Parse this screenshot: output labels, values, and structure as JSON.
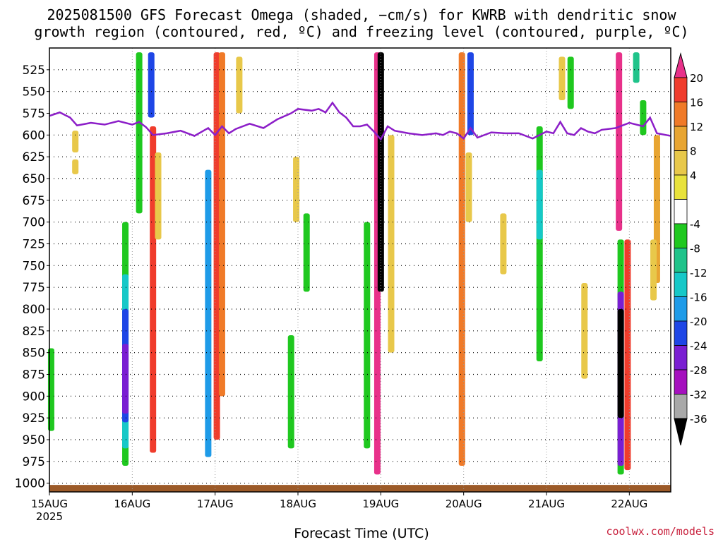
{
  "title_line1": "2025081500 GFS Forecast Omega (shaded, −cm/s) for KWRB with dendritic snow",
  "title_line2": "growth region (contoured, red, ºC) and freezing level (contoured, purple, ºC)",
  "xlabel": "Forecast Time (UTC)",
  "credit": "coolwx.com/models",
  "chart_data": {
    "type": "heatmap",
    "title": "2025081500 GFS Forecast Omega (shaded, −cm/s) for KWRB with dendritic snow growth region (contoured, red, ºC) and freezing level (contoured, purple, ºC)",
    "xlabel": "Forecast Time (UTC)",
    "ylabel": "",
    "x_ticks": [
      {
        "label": "15AUG",
        "sublabel": "2025",
        "hours": 0
      },
      {
        "label": "16AUG",
        "hours": 24
      },
      {
        "label": "17AUG",
        "hours": 48
      },
      {
        "label": "18AUG",
        "hours": 72
      },
      {
        "label": "19AUG",
        "hours": 96
      },
      {
        "label": "20AUG",
        "hours": 120
      },
      {
        "label": "21AUG",
        "hours": 144
      },
      {
        "label": "22AUG",
        "hours": 168
      }
    ],
    "xlim_hours": [
      0,
      180
    ],
    "y_ticks": [
      525,
      550,
      575,
      600,
      625,
      650,
      675,
      700,
      725,
      750,
      775,
      800,
      825,
      850,
      875,
      900,
      925,
      950,
      975,
      1000
    ],
    "ylim_hPa": [
      500,
      1010
    ],
    "y_axis_inverted": true,
    "grid": true,
    "colorbar": {
      "labels": [
        "20",
        "16",
        "12",
        "8",
        "4",
        "-4",
        "-8",
        "-12",
        "-16",
        "-20",
        "-24",
        "-28",
        "-32",
        "-36"
      ],
      "colors": [
        "#e8318a",
        "#f03c2c",
        "#f07a28",
        "#e8a532",
        "#e8c84a",
        "#e8e23c",
        "#ffffff",
        "#1fc81f",
        "#1fc38a",
        "#16c8c8",
        "#1e9be8",
        "#1e46e6",
        "#7a1ed2",
        "#a50fbe",
        "#a8a8a8",
        "#000000"
      ]
    },
    "freezing_level_hPa": [
      [
        0,
        578
      ],
      [
        3,
        574
      ],
      [
        6,
        580
      ],
      [
        8,
        589
      ],
      [
        12,
        586
      ],
      [
        16,
        588
      ],
      [
        20,
        584
      ],
      [
        24,
        588
      ],
      [
        26,
        585
      ],
      [
        28,
        591
      ],
      [
        30,
        600
      ],
      [
        34,
        598
      ],
      [
        38,
        595
      ],
      [
        42,
        601
      ],
      [
        46,
        592
      ],
      [
        48,
        600
      ],
      [
        50,
        590
      ],
      [
        52,
        598
      ],
      [
        54,
        593
      ],
      [
        58,
        587
      ],
      [
        62,
        592
      ],
      [
        66,
        582
      ],
      [
        70,
        575
      ],
      [
        72,
        570
      ],
      [
        76,
        572
      ],
      [
        78,
        570
      ],
      [
        80,
        574
      ],
      [
        82,
        563
      ],
      [
        84,
        574
      ],
      [
        86,
        580
      ],
      [
        88,
        590
      ],
      [
        90,
        590
      ],
      [
        92,
        588
      ],
      [
        94,
        596
      ],
      [
        96,
        605
      ],
      [
        98,
        590
      ],
      [
        100,
        595
      ],
      [
        104,
        598
      ],
      [
        108,
        600
      ],
      [
        112,
        598
      ],
      [
        114,
        600
      ],
      [
        116,
        596
      ],
      [
        118,
        598
      ],
      [
        120,
        604
      ],
      [
        122,
        592
      ],
      [
        124,
        603
      ],
      [
        128,
        597
      ],
      [
        132,
        598
      ],
      [
        136,
        598
      ],
      [
        140,
        604
      ],
      [
        144,
        596
      ],
      [
        146,
        598
      ],
      [
        148,
        585
      ],
      [
        150,
        598
      ],
      [
        152,
        600
      ],
      [
        154,
        592
      ],
      [
        156,
        596
      ],
      [
        158,
        598
      ],
      [
        160,
        594
      ],
      [
        164,
        592
      ],
      [
        168,
        586
      ],
      [
        172,
        590
      ],
      [
        174,
        580
      ],
      [
        176,
        598
      ],
      [
        180,
        601
      ]
    ],
    "omega_features": [
      {
        "hours": 7.5,
        "top_hPa": 595,
        "bottom_hPa": 620,
        "color": "#e8c84a"
      },
      {
        "hours": 7.5,
        "top_hPa": 628,
        "bottom_hPa": 645,
        "color": "#e8c84a"
      },
      {
        "hours": 0.5,
        "top_hPa": 845,
        "bottom_hPa": 940,
        "color": "#1fc81f"
      },
      {
        "hours": 22,
        "top_hPa": 700,
        "bottom_hPa": 980,
        "color": "#1fc81f"
      },
      {
        "hours": 22,
        "top_hPa": 760,
        "bottom_hPa": 960,
        "color": "#16c8c8"
      },
      {
        "hours": 22,
        "top_hPa": 800,
        "bottom_hPa": 930,
        "color": "#1e46e6"
      },
      {
        "hours": 22,
        "top_hPa": 840,
        "bottom_hPa": 920,
        "color": "#7a1ed2"
      },
      {
        "hours": 26,
        "top_hPa": 505,
        "bottom_hPa": 690,
        "color": "#1fc81f"
      },
      {
        "hours": 29.5,
        "top_hPa": 505,
        "bottom_hPa": 580,
        "color": "#1e46e6"
      },
      {
        "hours": 30,
        "top_hPa": 590,
        "bottom_hPa": 965,
        "color": "#f03c2c"
      },
      {
        "hours": 31.5,
        "top_hPa": 620,
        "bottom_hPa": 720,
        "color": "#e8c84a"
      },
      {
        "hours": 46,
        "top_hPa": 640,
        "bottom_hPa": 970,
        "color": "#1e9be8"
      },
      {
        "hours": 48.5,
        "top_hPa": 505,
        "bottom_hPa": 950,
        "color": "#f03c2c"
      },
      {
        "hours": 50,
        "top_hPa": 505,
        "bottom_hPa": 900,
        "color": "#f07a28"
      },
      {
        "hours": 55,
        "top_hPa": 510,
        "bottom_hPa": 575,
        "color": "#e8c84a"
      },
      {
        "hours": 71.5,
        "top_hPa": 625,
        "bottom_hPa": 700,
        "color": "#e8c84a"
      },
      {
        "hours": 70,
        "top_hPa": 830,
        "bottom_hPa": 960,
        "color": "#1fc81f"
      },
      {
        "hours": 74.5,
        "top_hPa": 690,
        "bottom_hPa": 780,
        "color": "#1fc81f"
      },
      {
        "hours": 95,
        "top_hPa": 505,
        "bottom_hPa": 990,
        "color": "#e8318a"
      },
      {
        "hours": 96,
        "top_hPa": 505,
        "bottom_hPa": 780,
        "color": "#000000"
      },
      {
        "hours": 92,
        "top_hPa": 700,
        "bottom_hPa": 960,
        "color": "#1fc81f"
      },
      {
        "hours": 99,
        "top_hPa": 600,
        "bottom_hPa": 850,
        "color": "#e8c84a"
      },
      {
        "hours": 119.5,
        "top_hPa": 505,
        "bottom_hPa": 980,
        "color": "#f07a28"
      },
      {
        "hours": 122,
        "top_hPa": 505,
        "bottom_hPa": 600,
        "color": "#1e46e6"
      },
      {
        "hours": 121.5,
        "top_hPa": 620,
        "bottom_hPa": 700,
        "color": "#e8c84a"
      },
      {
        "hours": 131.5,
        "top_hPa": 690,
        "bottom_hPa": 760,
        "color": "#e8c84a"
      },
      {
        "hours": 142,
        "top_hPa": 590,
        "bottom_hPa": 860,
        "color": "#1fc81f"
      },
      {
        "hours": 142,
        "top_hPa": 640,
        "bottom_hPa": 720,
        "color": "#16c8c8"
      },
      {
        "hours": 148.5,
        "top_hPa": 510,
        "bottom_hPa": 560,
        "color": "#e8c84a"
      },
      {
        "hours": 151,
        "top_hPa": 510,
        "bottom_hPa": 570,
        "color": "#1fc81f"
      },
      {
        "hours": 155,
        "top_hPa": 770,
        "bottom_hPa": 880,
        "color": "#e8c84a"
      },
      {
        "hours": 165,
        "top_hPa": 505,
        "bottom_hPa": 710,
        "color": "#e8318a"
      },
      {
        "hours": 165.5,
        "top_hPa": 720,
        "bottom_hPa": 990,
        "color": "#1fc81f"
      },
      {
        "hours": 165.5,
        "top_hPa": 780,
        "bottom_hPa": 980,
        "color": "#7a1ed2"
      },
      {
        "hours": 165.5,
        "top_hPa": 800,
        "bottom_hPa": 925,
        "color": "#000000"
      },
      {
        "hours": 167.5,
        "top_hPa": 720,
        "bottom_hPa": 985,
        "color": "#f03c2c"
      },
      {
        "hours": 170,
        "top_hPa": 505,
        "bottom_hPa": 540,
        "color": "#1fc38a"
      },
      {
        "hours": 172,
        "top_hPa": 560,
        "bottom_hPa": 600,
        "color": "#1fc81f"
      },
      {
        "hours": 176,
        "top_hPa": 600,
        "bottom_hPa": 770,
        "color": "#e8a532"
      },
      {
        "hours": 175,
        "top_hPa": 720,
        "bottom_hPa": 790,
        "color": "#e8c84a"
      }
    ],
    "ground_surface": true
  }
}
